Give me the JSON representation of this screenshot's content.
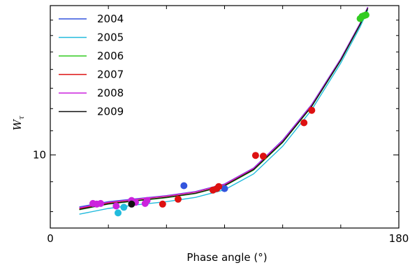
{
  "chart_data": {
    "type": "scatter",
    "title": "",
    "xlabel": "Phase angle (°)",
    "ylabel": "W",
    "ylabel_subscript": "τ",
    "xlim": [
      0,
      180
    ],
    "ylim": [
      7.5,
      18
    ],
    "y_scale": "log",
    "x_ticks": [
      0,
      180
    ],
    "x_tick_labels": [
      "0",
      "180"
    ],
    "y_ticks": [
      10
    ],
    "y_tick_labels": [
      "10"
    ],
    "grid": false,
    "legend_position": "top-left",
    "series": [
      {
        "name": "2004",
        "color": "#3355dd",
        "curve": [
          [
            15,
            8.15
          ],
          [
            30,
            8.32
          ],
          [
            45,
            8.42
          ],
          [
            60,
            8.52
          ],
          [
            75,
            8.66
          ],
          [
            90,
            8.92
          ],
          [
            105,
            9.5
          ],
          [
            120,
            10.6
          ],
          [
            135,
            12.2
          ],
          [
            150,
            14.6
          ],
          [
            160,
            16.8
          ],
          [
            164,
            17.9
          ]
        ],
        "points": [
          [
            69,
            8.86
          ],
          [
            90,
            8.76
          ]
        ]
      },
      {
        "name": "2005",
        "color": "#22bbdd",
        "curve": [
          [
            15,
            7.92
          ],
          [
            30,
            8.1
          ],
          [
            45,
            8.22
          ],
          [
            60,
            8.32
          ],
          [
            75,
            8.46
          ],
          [
            90,
            8.72
          ],
          [
            105,
            9.28
          ],
          [
            120,
            10.35
          ],
          [
            135,
            11.95
          ],
          [
            150,
            14.35
          ],
          [
            160,
            16.55
          ],
          [
            164,
            17.7
          ]
        ],
        "points": [
          [
            35,
            7.96
          ],
          [
            38,
            8.14
          ]
        ]
      },
      {
        "name": "2006",
        "color": "#33cc22",
        "curve": [
          [
            15,
            8.06
          ],
          [
            30,
            8.24
          ],
          [
            45,
            8.35
          ],
          [
            60,
            8.45
          ],
          [
            75,
            8.59
          ],
          [
            90,
            8.85
          ],
          [
            105,
            9.42
          ],
          [
            120,
            10.5
          ],
          [
            135,
            12.1
          ],
          [
            150,
            14.5
          ],
          [
            160,
            16.7
          ],
          [
            164,
            17.8
          ]
        ],
        "points": [
          [
            160,
            17.1
          ],
          [
            161,
            17.25
          ],
          [
            162,
            17.3
          ],
          [
            163,
            17.35
          ]
        ]
      },
      {
        "name": "2007",
        "color": "#dd1111",
        "curve": [
          [
            15,
            8.1
          ],
          [
            30,
            8.28
          ],
          [
            45,
            8.4
          ],
          [
            60,
            8.5
          ],
          [
            75,
            8.64
          ],
          [
            90,
            8.9
          ],
          [
            105,
            9.48
          ],
          [
            120,
            10.55
          ],
          [
            135,
            12.15
          ],
          [
            150,
            14.55
          ],
          [
            160,
            16.75
          ],
          [
            164,
            17.85
          ]
        ],
        "points": [
          [
            58,
            8.24
          ],
          [
            66,
            8.4
          ],
          [
            84,
            8.71
          ],
          [
            86,
            8.76
          ],
          [
            87,
            8.83
          ],
          [
            106,
            9.98
          ],
          [
            110,
            9.95
          ],
          [
            131,
            11.35
          ],
          [
            135,
            11.92
          ]
        ]
      },
      {
        "name": "2008",
        "color": "#cc22dd",
        "curve": [
          [
            15,
            8.12
          ],
          [
            30,
            8.3
          ],
          [
            45,
            8.41
          ],
          [
            60,
            8.51
          ],
          [
            75,
            8.65
          ],
          [
            90,
            8.91
          ],
          [
            105,
            9.49
          ],
          [
            120,
            10.58
          ],
          [
            135,
            12.18
          ],
          [
            150,
            14.58
          ],
          [
            160,
            16.78
          ],
          [
            164,
            17.88
          ]
        ],
        "points": [
          [
            22,
            8.26
          ],
          [
            24,
            8.24
          ],
          [
            26,
            8.26
          ],
          [
            34,
            8.18
          ],
          [
            42,
            8.36
          ],
          [
            44,
            8.3
          ],
          [
            49,
            8.26
          ],
          [
            50,
            8.36
          ]
        ]
      },
      {
        "name": "2009",
        "color": "#111111",
        "curve": [
          [
            15,
            8.07
          ],
          [
            30,
            8.25
          ],
          [
            45,
            8.36
          ],
          [
            60,
            8.46
          ],
          [
            75,
            8.6
          ],
          [
            90,
            8.86
          ],
          [
            105,
            9.44
          ],
          [
            120,
            10.52
          ],
          [
            135,
            12.12
          ],
          [
            150,
            14.52
          ],
          [
            160,
            16.72
          ],
          [
            164,
            17.82
          ]
        ],
        "points": [
          [
            42,
            8.24
          ]
        ]
      }
    ]
  }
}
